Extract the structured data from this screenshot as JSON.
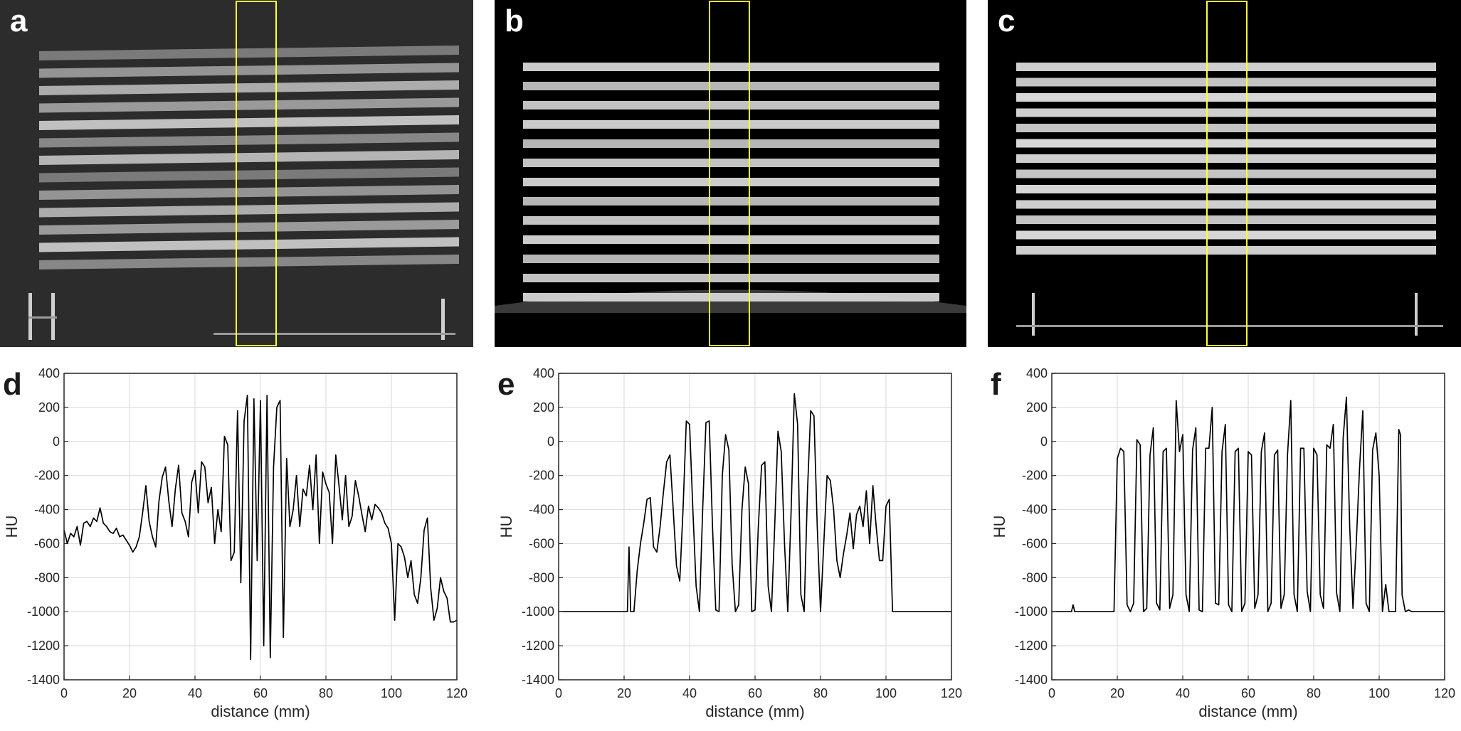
{
  "panels": {
    "a": {
      "label": "a",
      "tone": "#9a9a9a",
      "roi_color": "#ffff33"
    },
    "b": {
      "label": "b",
      "tone": "#d0d0d0",
      "roi_color": "#ffff33"
    },
    "c": {
      "label": "c",
      "tone": "#d8d8d8",
      "roi_color": "#ffff33"
    }
  },
  "chart_data": [
    {
      "panel_label": "d",
      "type": "line",
      "xlabel": "distance (mm)",
      "ylabel": "HU",
      "xlim": [
        0,
        120
      ],
      "ylim": [
        -1400,
        400
      ],
      "xticks": [
        0,
        20,
        40,
        60,
        80,
        100,
        120
      ],
      "yticks": [
        -1400,
        -1200,
        -1000,
        -800,
        -600,
        -400,
        -200,
        0,
        200,
        400
      ],
      "grid": true,
      "series": [
        {
          "x": [
            0,
            1,
            2,
            3,
            4,
            5,
            6,
            7,
            8,
            9,
            10,
            11,
            12,
            13,
            14,
            15,
            16,
            17,
            18,
            19,
            20,
            21,
            22,
            23,
            24,
            25,
            26,
            27,
            28,
            29,
            30,
            31,
            32,
            33,
            34,
            35,
            36,
            37,
            38,
            39,
            40,
            41,
            42,
            43,
            44,
            45,
            46,
            47,
            48,
            49,
            50,
            51,
            52,
            53,
            54,
            55,
            56,
            57,
            58,
            59,
            60,
            61,
            62,
            63,
            64,
            65,
            66,
            67,
            68,
            69,
            70,
            71,
            72,
            73,
            74,
            75,
            76,
            77,
            78,
            79,
            80,
            81,
            82,
            83,
            84,
            85,
            86,
            87,
            88,
            89,
            90,
            91,
            92,
            93,
            94,
            95,
            96,
            97,
            98,
            99,
            100,
            101,
            102,
            103,
            104,
            105,
            106,
            107,
            108,
            109,
            110,
            111,
            112,
            113,
            114,
            115,
            116,
            117,
            118,
            119,
            120
          ],
          "y": [
            -520,
            -600,
            -540,
            -560,
            -500,
            -610,
            -480,
            -470,
            -500,
            -450,
            -470,
            -390,
            -480,
            -500,
            -530,
            -540,
            -510,
            -560,
            -550,
            -580,
            -610,
            -650,
            -620,
            -560,
            -420,
            -260,
            -470,
            -560,
            -620,
            -350,
            -210,
            -150,
            -350,
            -500,
            -280,
            -140,
            -420,
            -470,
            -560,
            -240,
            -170,
            -420,
            -120,
            -150,
            -360,
            -270,
            -600,
            -400,
            -530,
            30,
            -20,
            -700,
            -650,
            180,
            -830,
            120,
            270,
            -1280,
            250,
            -700,
            240,
            -1200,
            270,
            -1270,
            -150,
            200,
            240,
            -1150,
            -100,
            -500,
            -400,
            -200,
            -500,
            -280,
            -320,
            -140,
            -400,
            -80,
            -600,
            -180,
            -250,
            -300,
            -600,
            -80,
            -260,
            -460,
            -200,
            -500,
            -440,
            -230,
            -320,
            -430,
            -530,
            -380,
            -460,
            -370,
            -390,
            -420,
            -480,
            -510,
            -600,
            -1050,
            -600,
            -620,
            -680,
            -800,
            -700,
            -900,
            -950,
            -800,
            -520,
            -450,
            -860,
            -1050,
            -980,
            -800,
            -880,
            -920,
            -1060,
            -1060,
            -1050
          ]
        }
      ]
    },
    {
      "panel_label": "e",
      "type": "line",
      "xlabel": "distance (mm)",
      "ylabel": "HU",
      "xlim": [
        0,
        120
      ],
      "ylim": [
        -1400,
        400
      ],
      "xticks": [
        0,
        20,
        40,
        60,
        80,
        100,
        120
      ],
      "yticks": [
        -1400,
        -1200,
        -1000,
        -800,
        -600,
        -400,
        -200,
        0,
        200,
        400
      ],
      "grid": true,
      "series": [
        {
          "x": [
            0,
            21,
            21.5,
            22,
            23,
            24,
            25,
            26,
            27,
            28,
            29,
            30,
            31,
            32,
            33,
            34,
            35,
            36,
            37,
            38,
            39,
            40,
            41,
            42,
            43,
            44,
            45,
            46,
            47,
            48,
            49,
            50,
            51,
            52,
            53,
            54,
            55,
            56,
            57,
            58,
            59,
            60,
            61,
            62,
            63,
            64,
            65,
            66,
            67,
            68,
            69,
            70,
            71,
            72,
            73,
            74,
            75,
            76,
            77,
            78,
            79,
            80,
            81,
            82,
            83,
            84,
            85,
            86,
            87,
            88,
            89,
            90,
            91,
            92,
            93,
            94,
            95,
            96,
            97,
            98,
            99,
            100,
            101,
            102,
            103,
            104,
            105,
            120
          ],
          "y": [
            -1000,
            -1000,
            -620,
            -1000,
            -1000,
            -760,
            -600,
            -480,
            -340,
            -330,
            -620,
            -650,
            -500,
            -300,
            -120,
            -80,
            -400,
            -730,
            -820,
            -400,
            120,
            100,
            -400,
            -850,
            -1000,
            -400,
            110,
            120,
            -500,
            -990,
            -1000,
            -200,
            40,
            -50,
            -720,
            -1000,
            -960,
            -400,
            -150,
            -250,
            -1000,
            -990,
            -500,
            -140,
            -120,
            -850,
            -1000,
            -500,
            60,
            -60,
            -600,
            -1000,
            -420,
            280,
            100,
            -900,
            -1000,
            -300,
            180,
            150,
            -500,
            -1000,
            -600,
            -200,
            -230,
            -400,
            -700,
            -800,
            -660,
            -550,
            -420,
            -630,
            -430,
            -380,
            -500,
            -290,
            -600,
            -260,
            -500,
            -700,
            -700,
            -380,
            -340,
            -1000,
            -1000,
            -1000,
            -1000,
            -1000
          ]
        }
      ]
    },
    {
      "panel_label": "f",
      "type": "line",
      "xlabel": "distance (mm)",
      "ylabel": "HU",
      "xlim": [
        0,
        120
      ],
      "ylim": [
        -1400,
        400
      ],
      "xticks": [
        0,
        20,
        40,
        60,
        80,
        100,
        120
      ],
      "yticks": [
        -1400,
        -1200,
        -1000,
        -800,
        -600,
        -400,
        -200,
        0,
        200,
        400
      ],
      "grid": true,
      "series": [
        {
          "x": [
            0,
            6,
            6.5,
            7,
            19,
            20,
            21,
            22,
            23,
            24,
            25,
            26,
            27,
            28,
            29,
            30,
            31,
            32,
            33,
            34,
            35,
            36,
            37,
            38,
            39,
            40,
            41,
            42,
            43,
            44,
            45,
            46,
            47,
            48,
            49,
            50,
            51,
            52,
            53,
            54,
            55,
            56,
            57,
            58,
            59,
            60,
            61,
            62,
            63,
            64,
            65,
            66,
            67,
            68,
            69,
            70,
            71,
            72,
            73,
            74,
            75,
            76,
            77,
            78,
            79,
            80,
            81,
            82,
            83,
            84,
            85,
            86,
            87,
            88,
            89,
            90,
            91,
            92,
            93,
            94,
            95,
            96,
            97,
            98,
            99,
            100,
            101,
            102,
            103,
            104,
            105,
            106,
            106.5,
            107,
            108,
            109,
            110,
            111,
            120
          ],
          "y": [
            -1000,
            -1000,
            -960,
            -1000,
            -1000,
            -100,
            -40,
            -60,
            -960,
            -1000,
            -950,
            10,
            -20,
            -1000,
            -980,
            -80,
            80,
            -950,
            -990,
            -60,
            -40,
            -980,
            -900,
            240,
            -60,
            40,
            -900,
            -1000,
            -50,
            80,
            -990,
            -1000,
            -40,
            -40,
            200,
            -950,
            -960,
            -60,
            100,
            -960,
            -1000,
            -60,
            -40,
            -1000,
            -950,
            -60,
            -80,
            -980,
            -900,
            -60,
            50,
            -1000,
            -950,
            -80,
            -50,
            -980,
            -900,
            -80,
            240,
            -900,
            -1000,
            -40,
            -40,
            -880,
            -1000,
            -40,
            -80,
            -900,
            -980,
            -20,
            -40,
            100,
            -890,
            -1000,
            20,
            260,
            -500,
            -980,
            -600,
            -160,
            180,
            -950,
            -1000,
            -50,
            50,
            -200,
            -1000,
            -840,
            -1000,
            -1000,
            -1000,
            70,
            40,
            -900,
            -1000,
            -990,
            -1000,
            -1000,
            -1000
          ]
        }
      ]
    }
  ]
}
